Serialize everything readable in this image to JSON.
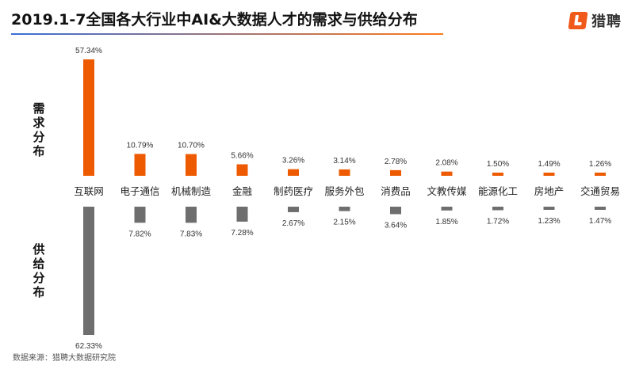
{
  "title": "2019.1-7全国各大行业中AI&大数据人才的需求与供给分布",
  "logo": {
    "text": "猎聘",
    "icon": "liepin-logo-icon",
    "color": "#f05a1a"
  },
  "side_labels": {
    "demand": "需求分布",
    "supply": "供给分布"
  },
  "source": "数据来源：猎聘大数据研究院",
  "colors": {
    "demand": "#ee5a00",
    "supply": "#6e6e6e"
  },
  "chart_data": {
    "type": "bar",
    "categories": [
      "互联网",
      "电子通信",
      "机械制造",
      "金融",
      "制药医疗",
      "服务外包",
      "消费品",
      "文教传媒",
      "能源化工",
      "房地产",
      "交通贸易"
    ],
    "series": [
      {
        "name": "需求分布",
        "values": [
          57.34,
          10.79,
          10.7,
          5.66,
          3.26,
          3.14,
          2.78,
          2.08,
          1.5,
          1.49,
          1.26
        ],
        "labels": [
          "57.34%",
          "10.79%",
          "10.70%",
          "5.66%",
          "3.26%",
          "3.14%",
          "2.78%",
          "2.08%",
          "1.50%",
          "1.49%",
          "1.26%"
        ]
      },
      {
        "name": "供给分布",
        "values": [
          62.33,
          7.82,
          7.83,
          7.28,
          2.67,
          2.15,
          3.64,
          1.85,
          1.72,
          1.23,
          1.47
        ],
        "labels": [
          "62.33%",
          "7.82%",
          "7.83%",
          "7.28%",
          "2.67%",
          "2.15%",
          "3.64%",
          "1.85%",
          "1.72%",
          "1.23%",
          "1.47%"
        ]
      }
    ],
    "unit": "%"
  }
}
